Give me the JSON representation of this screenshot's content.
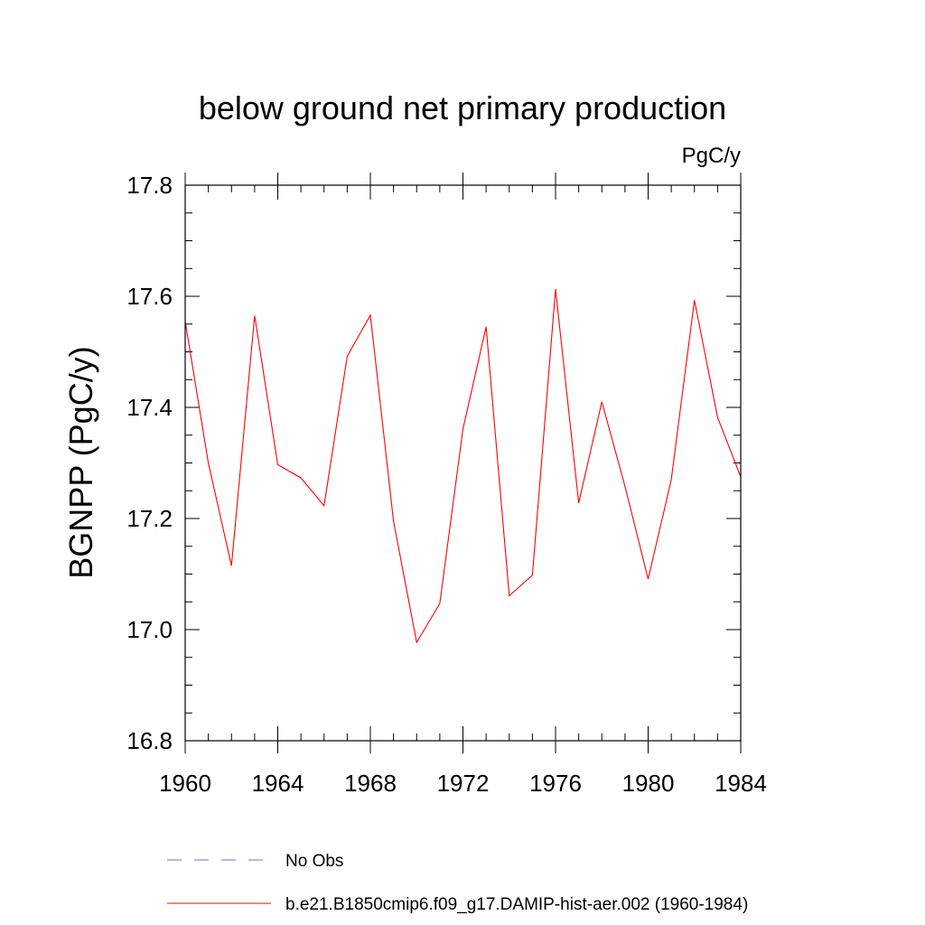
{
  "chart_data": {
    "type": "line",
    "title": "below ground net primary production",
    "units": "PgC/y",
    "xlabel": "",
    "ylabel": "BGNPP  (PgC/y)",
    "xlim": [
      1960,
      1984
    ],
    "ylim": [
      16.8,
      17.8
    ],
    "x_ticks": [
      "1960",
      "1964",
      "1968",
      "1972",
      "1976",
      "1980",
      "1984"
    ],
    "y_ticks": [
      "16.8",
      "17.0",
      "17.2",
      "17.4",
      "17.6",
      "17.8"
    ],
    "grid": false,
    "legend_position": "bottom",
    "series": [
      {
        "name": "b.e21.B1850cmip6.f09_g17.DAMIP-hist-aer.002 (1960-1984)",
        "color": "#ff0000",
        "style": "solid",
        "x": [
          1960,
          1961,
          1962,
          1963,
          1964,
          1965,
          1966,
          1967,
          1968,
          1969,
          1970,
          1971,
          1972,
          1973,
          1974,
          1975,
          1976,
          1977,
          1978,
          1979,
          1980,
          1981,
          1982,
          1983,
          1984
        ],
        "values": [
          17.555,
          17.3,
          17.115,
          17.565,
          17.297,
          17.273,
          17.223,
          17.492,
          17.566,
          17.195,
          16.977,
          17.047,
          17.361,
          17.545,
          17.061,
          17.098,
          17.613,
          17.228,
          17.41,
          17.258,
          17.091,
          17.27,
          17.593,
          17.382,
          17.275
        ]
      },
      {
        "name": "No Obs",
        "color": "#7b68ee",
        "style": "dashed",
        "x": [],
        "values": []
      }
    ]
  }
}
